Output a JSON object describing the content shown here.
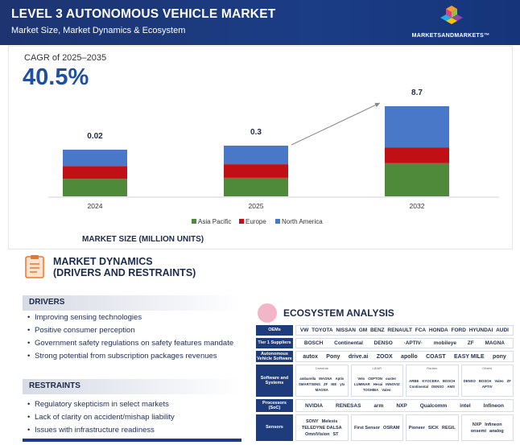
{
  "header": {
    "title": "LEVEL 3 AUTONOMOUS VEHICLE MARKET",
    "subtitle": "Market Size, Market Dynamics & Ecosystem",
    "brand": "MARKETSANDMARKETS™"
  },
  "cagr": {
    "label": "CAGR of 2025–2035",
    "value": "40.5%"
  },
  "colors": {
    "asia_pacific": "#4e8a3a",
    "europe": "#c00f15",
    "north_america": "#4a78c8",
    "header_bg": "#1b3a82"
  },
  "chart_data": {
    "type": "bar",
    "stacked": true,
    "categories": [
      "2024",
      "2025",
      "2032"
    ],
    "totals_labels": [
      "0.02",
      "0.3",
      "8.7"
    ],
    "series": [
      {
        "name": "Asia Pacific",
        "values": [
          0.0075,
          0.11,
          3.2
        ]
      },
      {
        "name": "Europe",
        "values": [
          0.0055,
          0.08,
          1.5
        ]
      },
      {
        "name": "North America",
        "values": [
          0.007,
          0.11,
          4.0
        ]
      }
    ],
    "xlabel": "MARKET SIZE (MILLION UNITS)",
    "ylabel": "",
    "legend_position": "bottom-center",
    "grid": false,
    "note": "bars not drawn to scale"
  },
  "dynamics": {
    "title_line1": "MARKET DYNAMICS",
    "title_line2": "(DRIVERS AND RESTRAINTS)",
    "drivers_heading": "DRIVERS",
    "drivers": [
      "Improving sensing technologies",
      "Positive consumer perception",
      "Government safety regulations on safety features mandate",
      "Strong potential from subscription packages revenues"
    ],
    "restraints_heading": "RESTRAINTS",
    "restraints": [
      "Regulatory skepticism in select markets",
      "Lack of clarity on accident/mishap liability",
      "Issues with infrastructure readiness"
    ]
  },
  "ecosystem": {
    "title": "ECOSYSTEM ANALYSIS",
    "rows": [
      {
        "label": "OEMs",
        "logos": [
          "VW",
          "TOYOTA",
          "NISSAN",
          "GM",
          "BENZ",
          "RENAULT",
          "FCA",
          "HONDA",
          "FORD",
          "HYUNDAI",
          "AUDI"
        ]
      },
      {
        "label": "Tier 1 Suppliers",
        "logos": [
          "BOSCH",
          "Continental",
          "DENSO",
          "·APTIV·",
          "mobileye",
          "ZF",
          "MAGNA"
        ]
      },
      {
        "label": "Autonomous Vehicle Software",
        "logos": [
          "autox",
          "Pony",
          "drive.ai",
          "ZOOX",
          "apollo",
          "COAST",
          "EASY MILE",
          "pony"
        ]
      },
      {
        "label": "Software and Systems",
        "cells": [
          {
            "caption": "Cameras",
            "logos": [
              "ambarella",
              "MAGNA",
              "Aptiv",
              "SMARTSENS",
              "ZF",
              "IEE",
              "ytx",
              "MAGNA"
            ]
          },
          {
            "caption": "LiDAR",
            "logos": [
              "Velo",
              "CEPTON",
              "ouster",
              "LUMINAR",
              "Hesai",
              "INNOVIZ",
              "TOSHIBA",
              "Valeo"
            ]
          },
          {
            "caption": "Radars",
            "logos": [
              "ARBE",
              "KYOCERA",
              "BOSCH",
              "Continental",
              "DENSO",
              "AMS"
            ]
          },
          {
            "caption": "Others",
            "logos": [
              "DENSO",
              "BOSCH",
              "Valeo",
              "ZF",
              "APTIV"
            ]
          }
        ]
      },
      {
        "label": "Processors (SoC)",
        "logos": [
          "NVIDIA",
          "RENESAS",
          "arm",
          "NXP",
          "Qualcomm",
          "intel",
          "Infineon"
        ]
      },
      {
        "label": "Sensors",
        "cells": [
          {
            "caption": "",
            "logos": [
              "SONY",
              "Melexis",
              "TELEDYNE DALSA",
              "OmniVision",
              "ST"
            ]
          },
          {
            "caption": "",
            "logos": [
              "First Sensor",
              "OSRAM"
            ]
          },
          {
            "caption": "",
            "logos": [
              "Pioneer",
              "SICK",
              "REGIL"
            ]
          },
          {
            "caption": "",
            "logos": [
              "NXP",
              "Infineon",
              "onsemi",
              "analog"
            ]
          }
        ]
      }
    ]
  }
}
